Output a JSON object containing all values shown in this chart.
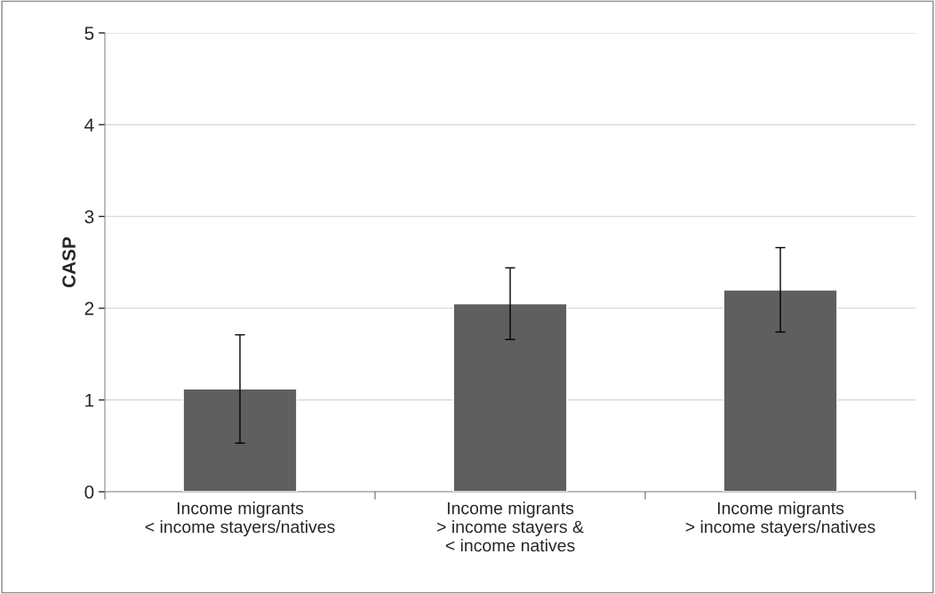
{
  "chart_data": {
    "type": "bar",
    "ylabel": "CASP",
    "categories": [
      "Income migrants\n< income stayers/natives",
      "Income migrants\n> income stayers &\n< income natives",
      "Income migrants\n> income stayers/natives"
    ],
    "values": [
      1.12,
      2.05,
      2.2
    ],
    "errors": [
      0.59,
      0.39,
      0.46
    ],
    "color": "#5f5f5f",
    "ylim": [
      0,
      5
    ],
    "yticks": [
      0,
      1,
      2,
      3,
      4,
      5
    ],
    "grid": "y",
    "legend": false
  }
}
